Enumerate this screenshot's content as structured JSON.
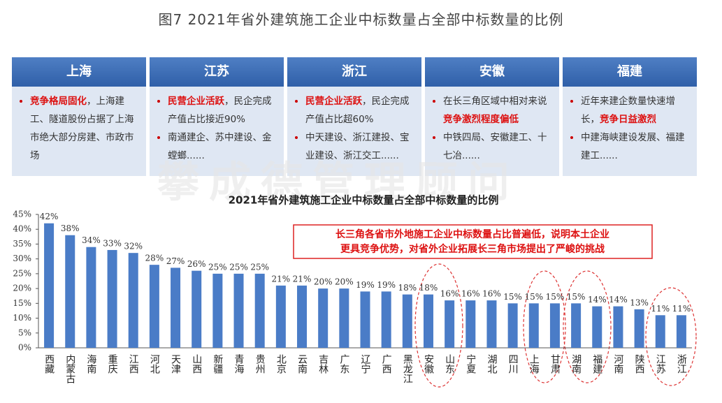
{
  "header": {
    "title": "图7 2021年省外建筑施工企业中标数量占全部中标数量的比例"
  },
  "panels": [
    {
      "title": "上海",
      "bullets": [
        [
          {
            "text": "竞争格局固化",
            "highlight": true
          },
          {
            "text": "，上海建工、隧道股份占据了上海市绝大部分房建、市政市场",
            "highlight": false
          }
        ]
      ]
    },
    {
      "title": "江苏",
      "bullets": [
        [
          {
            "text": "民营企业活跃",
            "highlight": true
          },
          {
            "text": "，民企完成产值占比接近90%",
            "highlight": false
          }
        ],
        [
          {
            "text": "南通建企、苏中建设、金螳螂......",
            "highlight": false
          }
        ]
      ]
    },
    {
      "title": "浙江",
      "bullets": [
        [
          {
            "text": "民营企业活跃",
            "highlight": true
          },
          {
            "text": "，民企完成产值占比超60%",
            "highlight": false
          }
        ],
        [
          {
            "text": "中天建设、浙江建投、宝业建设、浙江交工......",
            "highlight": false
          }
        ]
      ]
    },
    {
      "title": "安徽",
      "bullets": [
        [
          {
            "text": "在长三角区域中相对来说",
            "highlight": false
          },
          {
            "text": "竞争激烈程度偏低",
            "highlight": true
          }
        ],
        [
          {
            "text": "中铁四局、安徽建工、十七冶......",
            "highlight": false
          }
        ]
      ]
    },
    {
      "title": "福建",
      "bullets": [
        [
          {
            "text": "近年来建企数量快速增长，",
            "highlight": false
          },
          {
            "text": "竞争日益激烈",
            "highlight": true
          }
        ],
        [
          {
            "text": "中建海峡建设发展、福建建工......",
            "highlight": false
          }
        ]
      ]
    }
  ],
  "watermark": "攀成德管理顾问",
  "chart_data": {
    "type": "bar",
    "title": "2021年省外建筑施工企业中标数量占全部中标数量的比例",
    "categories": [
      "西藏",
      "内蒙古",
      "海南",
      "重庆",
      "江西",
      "河北",
      "天津",
      "山西",
      "新疆",
      "青海",
      "贵州",
      "北京",
      "云南",
      "吉林",
      "广东",
      "辽宁",
      "广西",
      "黑龙江",
      "安徽",
      "山东",
      "宁夏",
      "湖北",
      "四川",
      "上海",
      "甘肃",
      "湖南",
      "福建",
      "河南",
      "陕西",
      "江苏",
      "浙江"
    ],
    "values": [
      42,
      38,
      34,
      33,
      32,
      28,
      27,
      26,
      25,
      25,
      25,
      21,
      21,
      20,
      20,
      19,
      19,
      18,
      18,
      16,
      16,
      16,
      15,
      15,
      15,
      15,
      14,
      14,
      13,
      11,
      11
    ],
    "value_labels": [
      "42%",
      "38%",
      "34%",
      "33%",
      "32%",
      "28%",
      "27%",
      "26%",
      "25%",
      "25%",
      "25%",
      "21%",
      "21%",
      "20%",
      "20%",
      "19%",
      "19%",
      "18%",
      "18%",
      "16%",
      "16%",
      "16%",
      "15%",
      "15%",
      "15%",
      "15%",
      "14%",
      "14%",
      "13%",
      "11%",
      "11%"
    ],
    "color": "#4a7cc7",
    "ylim": [
      0,
      45
    ],
    "yticks": [
      {
        "value": 0,
        "label": "0%"
      },
      {
        "value": 5,
        "label": "5%"
      },
      {
        "value": 10,
        "label": "10%"
      },
      {
        "value": 15,
        "label": "15%"
      },
      {
        "value": 20,
        "label": "20%"
      },
      {
        "value": 25,
        "label": "25%"
      },
      {
        "value": 30,
        "label": "30%"
      },
      {
        "value": 35,
        "label": "35%"
      },
      {
        "value": 40,
        "label": "40%"
      },
      {
        "value": 45,
        "label": "45%"
      }
    ],
    "annotation": [
      "长三角各省市外地施工企业中标数量占比普遍低，说明本土企业",
      "更具竞争优势，对省外企业拓展长三角市场提出了严峻的挑战"
    ]
  }
}
